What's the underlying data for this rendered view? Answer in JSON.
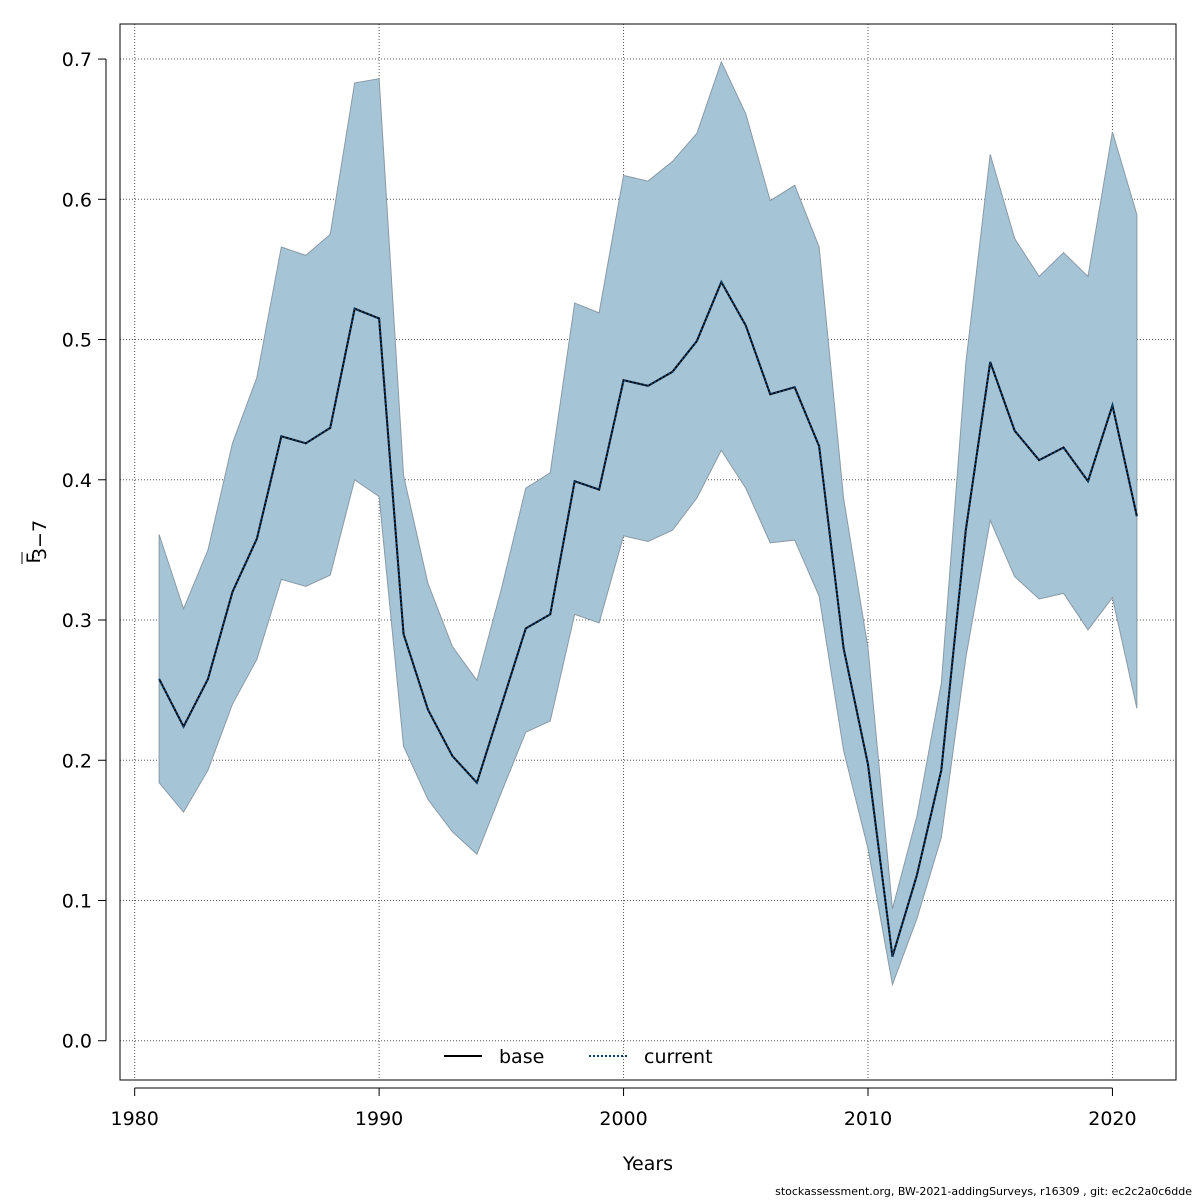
{
  "chart_data": {
    "type": "area",
    "xlabel": "Years",
    "ylabel_main": "F",
    "ylabel_sub": "3−7",
    "xlim": [
      1979.4,
      2022.6
    ],
    "ylim": [
      -0.028,
      0.725
    ],
    "x_ticks": [
      1980,
      1990,
      2000,
      2010,
      2020
    ],
    "y_ticks": [
      0.0,
      0.1,
      0.2,
      0.3,
      0.4,
      0.5,
      0.6,
      0.7
    ],
    "y_tick_labels": [
      "0.0",
      "0.1",
      "0.2",
      "0.3",
      "0.4",
      "0.5",
      "0.6",
      "0.7"
    ],
    "grid": true,
    "legend_position": "bottom-center",
    "colors": {
      "band": "#a5c4d6",
      "band_edge": "#8a9aa6",
      "base": "#000000",
      "current": "#0c3f6b",
      "grid": "#555555"
    },
    "years": [
      1981,
      1982,
      1983,
      1984,
      1985,
      1986,
      1987,
      1988,
      1989,
      1990,
      1991,
      1992,
      1993,
      1994,
      1995,
      1996,
      1997,
      1998,
      1999,
      2000,
      2001,
      2002,
      2003,
      2004,
      2005,
      2006,
      2007,
      2008,
      2009,
      2010,
      2011,
      2012,
      2013,
      2014,
      2015,
      2016,
      2017,
      2018,
      2019,
      2020,
      2021
    ],
    "upper": [
      0.361,
      0.308,
      0.35,
      0.426,
      0.473,
      0.566,
      0.56,
      0.575,
      0.683,
      0.686,
      0.403,
      0.326,
      0.281,
      0.257,
      0.322,
      0.394,
      0.405,
      0.526,
      0.519,
      0.617,
      0.613,
      0.627,
      0.647,
      0.698,
      0.661,
      0.599,
      0.61,
      0.566,
      0.387,
      0.28,
      0.094,
      0.16,
      0.255,
      0.483,
      0.632,
      0.572,
      0.545,
      0.562,
      0.545,
      0.648,
      0.589
    ],
    "lower": [
      0.184,
      0.163,
      0.193,
      0.24,
      0.272,
      0.329,
      0.324,
      0.332,
      0.4,
      0.388,
      0.21,
      0.172,
      0.149,
      0.133,
      0.177,
      0.22,
      0.228,
      0.304,
      0.298,
      0.36,
      0.356,
      0.364,
      0.387,
      0.421,
      0.394,
      0.355,
      0.357,
      0.317,
      0.207,
      0.137,
      0.04,
      0.087,
      0.145,
      0.273,
      0.371,
      0.331,
      0.315,
      0.319,
      0.293,
      0.316,
      0.237
    ],
    "series": [
      {
        "name": "base",
        "style": "solid",
        "values": [
          0.258,
          0.224,
          0.258,
          0.32,
          0.358,
          0.431,
          0.426,
          0.437,
          0.522,
          0.515,
          0.29,
          0.236,
          0.203,
          0.184,
          0.239,
          0.294,
          0.304,
          0.399,
          0.393,
          0.471,
          0.467,
          0.477,
          0.499,
          0.541,
          0.51,
          0.461,
          0.466,
          0.424,
          0.28,
          0.197,
          0.06,
          0.118,
          0.193,
          0.364,
          0.484,
          0.435,
          0.414,
          0.423,
          0.399,
          0.453,
          0.374
        ]
      },
      {
        "name": "current",
        "style": "dotted",
        "values": [
          0.258,
          0.224,
          0.258,
          0.32,
          0.358,
          0.431,
          0.426,
          0.437,
          0.522,
          0.515,
          0.29,
          0.236,
          0.203,
          0.184,
          0.239,
          0.294,
          0.304,
          0.399,
          0.393,
          0.471,
          0.467,
          0.477,
          0.499,
          0.541,
          0.51,
          0.461,
          0.466,
          0.424,
          0.28,
          0.197,
          0.06,
          0.118,
          0.193,
          0.364,
          0.484,
          0.435,
          0.414,
          0.423,
          0.399,
          0.453,
          0.374
        ]
      }
    ]
  },
  "footer": "stockassessment.org, BW-2021-addingSurveys, r16309 , git: ec2c2a0c6dde"
}
